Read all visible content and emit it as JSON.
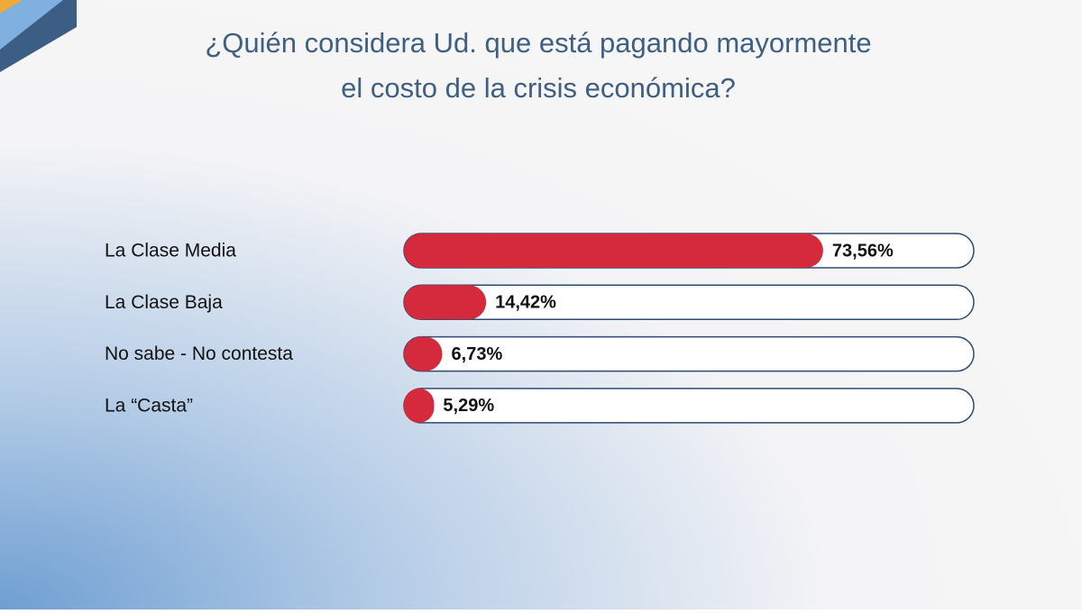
{
  "chart_data": {
    "type": "hbar",
    "title": [
      "¿Quién considera Ud. que está pagando mayormente",
      "el costo de la crisis económica?"
    ],
    "categories": [
      "La Clase Media",
      "La Clase Baja",
      "No sabe - No contesta",
      "La “Casta”"
    ],
    "values": [
      73.56,
      14.42,
      6.73,
      5.29
    ],
    "value_labels": [
      "73,56%",
      "14,42%",
      "6,73%",
      "5,29%"
    ],
    "color": "#d42a3c",
    "xlim": [
      0,
      100
    ]
  }
}
